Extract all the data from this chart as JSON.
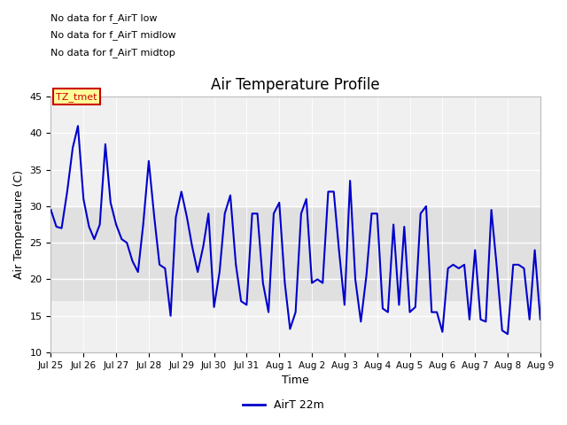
{
  "title": "Air Temperature Profile",
  "xlabel": "Time",
  "ylabel": "Air Temperature (C)",
  "ylim": [
    10,
    45
  ],
  "yticks": [
    10,
    15,
    20,
    25,
    30,
    35,
    40,
    45
  ],
  "xlabels": [
    "Jul 25",
    "Jul 26",
    "Jul 27",
    "Jul 28",
    "Jul 29",
    "Jul 30",
    "Jul 31",
    "Aug 1",
    "Aug 2",
    "Aug 3",
    "Aug 4",
    "Aug 5",
    "Aug 6",
    "Aug 7",
    "Aug 8",
    "Aug 9"
  ],
  "line_color": "#0000cc",
  "line_width": 1.5,
  "legend_label": "AirT 22m",
  "fig_facecolor": "#ffffff",
  "plot_facecolor": "#f0f0f0",
  "shade_lo": 17,
  "shade_hi": 30,
  "shade_color": "#e0e0e0",
  "annotations": [
    "No data for f_AirT low",
    "No data for f_AirT midlow",
    "No data for f_AirT midtop"
  ],
  "annotation_color": "#000000",
  "tz_label": "TZ_tmet",
  "tz_label_color": "#cc0000",
  "tz_label_bg": "#ffff99",
  "x_values": [
    0.0,
    0.17,
    0.33,
    0.5,
    0.67,
    0.83,
    1.0,
    1.17,
    1.33,
    1.5,
    1.67,
    1.83,
    2.0,
    2.17,
    2.33,
    2.5,
    2.67,
    2.83,
    3.0,
    3.17,
    3.33,
    3.5,
    3.67,
    3.83,
    4.0,
    4.17,
    4.33,
    4.5,
    4.67,
    4.83,
    5.0,
    5.17,
    5.33,
    5.5,
    5.67,
    5.83,
    6.0,
    6.17,
    6.33,
    6.5,
    6.67,
    6.83,
    7.0,
    7.17,
    7.33,
    7.5,
    7.67,
    7.83,
    8.0,
    8.17,
    8.33,
    8.5,
    8.67,
    8.83,
    9.0,
    9.17,
    9.33,
    9.5,
    9.67,
    9.83,
    10.0,
    10.17,
    10.33,
    10.5,
    10.67,
    10.83,
    11.0,
    11.17,
    11.33,
    11.5,
    11.67,
    11.83,
    12.0,
    12.17,
    12.33,
    12.5,
    12.67,
    12.83,
    13.0,
    13.17,
    13.33,
    13.5,
    13.67,
    13.83,
    14.0,
    14.17,
    14.33,
    14.5,
    14.67,
    14.83,
    15.0
  ],
  "y_values": [
    29.5,
    27.2,
    27.0,
    32.0,
    38.0,
    41.0,
    31.0,
    27.2,
    25.5,
    27.5,
    38.5,
    30.5,
    27.5,
    25.5,
    25.0,
    22.5,
    21.0,
    27.5,
    36.2,
    28.5,
    22.0,
    21.5,
    15.0,
    28.5,
    32.0,
    28.5,
    24.5,
    21.0,
    24.5,
    29.0,
    16.2,
    21.0,
    29.0,
    31.5,
    22.0,
    17.0,
    16.5,
    29.0,
    29.0,
    19.5,
    15.5,
    29.0,
    30.5,
    19.5,
    13.2,
    15.5,
    29.0,
    31.0,
    19.5,
    20.0,
    19.5,
    32.0,
    32.0,
    24.0,
    16.5,
    33.5,
    20.0,
    14.2,
    20.5,
    29.0,
    29.0,
    16.0,
    15.5,
    27.5,
    16.5,
    27.2,
    15.5,
    16.2,
    29.0,
    30.0,
    15.5,
    15.5,
    12.8,
    21.5,
    22.0,
    21.5,
    22.0,
    14.5,
    24.0,
    14.5,
    14.2,
    29.5,
    21.5,
    13.0,
    12.5,
    22.0,
    22.0,
    21.5,
    14.5,
    24.0,
    14.5
  ]
}
